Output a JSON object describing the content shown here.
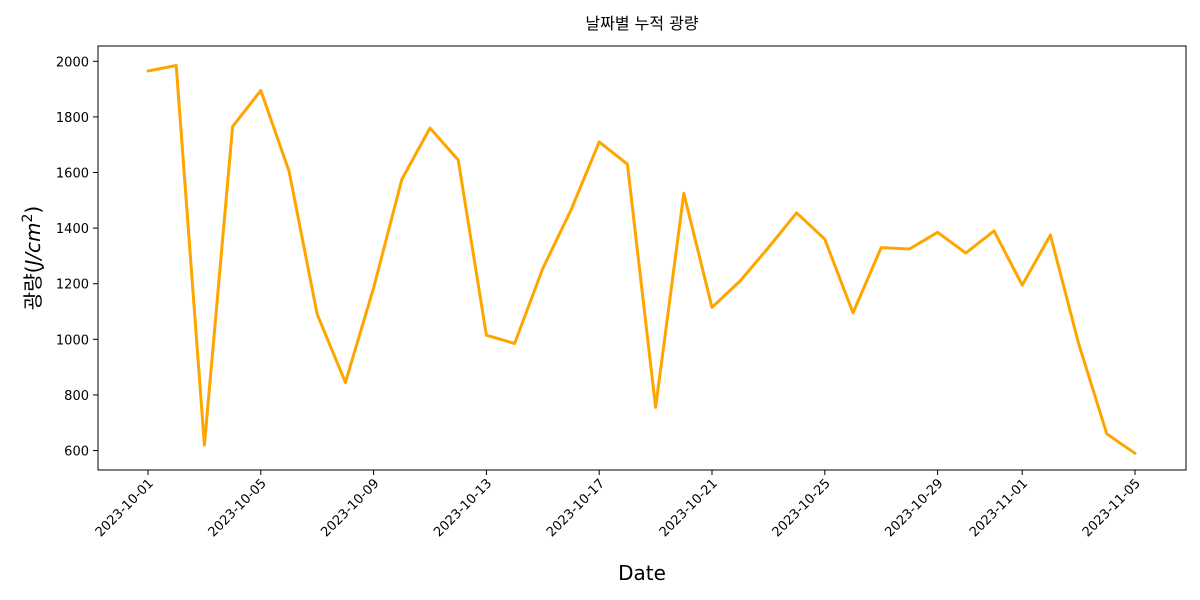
{
  "chart_data": {
    "type": "line",
    "title": "날짜별 누적 광량",
    "xlabel": "Date",
    "ylabel": "광량(J/cm²)",
    "ylabel_parts": {
      "main": "광량(",
      "unit": "J/cm",
      "sup": "2",
      "close": ")"
    },
    "color": "#FFA500",
    "grid": false,
    "legend": "none",
    "ylim": [
      530,
      2055
    ],
    "y_ticks": [
      600,
      800,
      1000,
      1200,
      1400,
      1600,
      1800,
      2000
    ],
    "x_ticks": [
      "2023-10-01",
      "2023-10-05",
      "2023-10-09",
      "2023-10-13",
      "2023-10-17",
      "2023-10-21",
      "2023-10-25",
      "2023-10-29",
      "2023-11-01",
      "2023-11-05"
    ],
    "x": [
      "2023-10-01",
      "2023-10-02",
      "2023-10-03",
      "2023-10-04",
      "2023-10-05",
      "2023-10-06",
      "2023-10-07",
      "2023-10-08",
      "2023-10-09",
      "2023-10-10",
      "2023-10-11",
      "2023-10-12",
      "2023-10-13",
      "2023-10-14",
      "2023-10-15",
      "2023-10-16",
      "2023-10-17",
      "2023-10-18",
      "2023-10-19",
      "2023-10-20",
      "2023-10-21",
      "2023-10-22",
      "2023-10-23",
      "2023-10-24",
      "2023-10-25",
      "2023-10-26",
      "2023-10-27",
      "2023-10-28",
      "2023-10-29",
      "2023-10-30",
      "2023-10-31",
      "2023-11-01",
      "2023-11-02",
      "2023-11-03",
      "2023-11-04",
      "2023-11-05"
    ],
    "values": [
      1965,
      1985,
      620,
      1765,
      1895,
      1605,
      1090,
      845,
      1185,
      1575,
      1760,
      1645,
      1015,
      985,
      1255,
      1465,
      1710,
      1630,
      755,
      1525,
      1115,
      1210,
      1330,
      1455,
      1360,
      1095,
      1330,
      1325,
      1385,
      1310,
      1390,
      1195,
      1375,
      985,
      660,
      590
    ]
  }
}
